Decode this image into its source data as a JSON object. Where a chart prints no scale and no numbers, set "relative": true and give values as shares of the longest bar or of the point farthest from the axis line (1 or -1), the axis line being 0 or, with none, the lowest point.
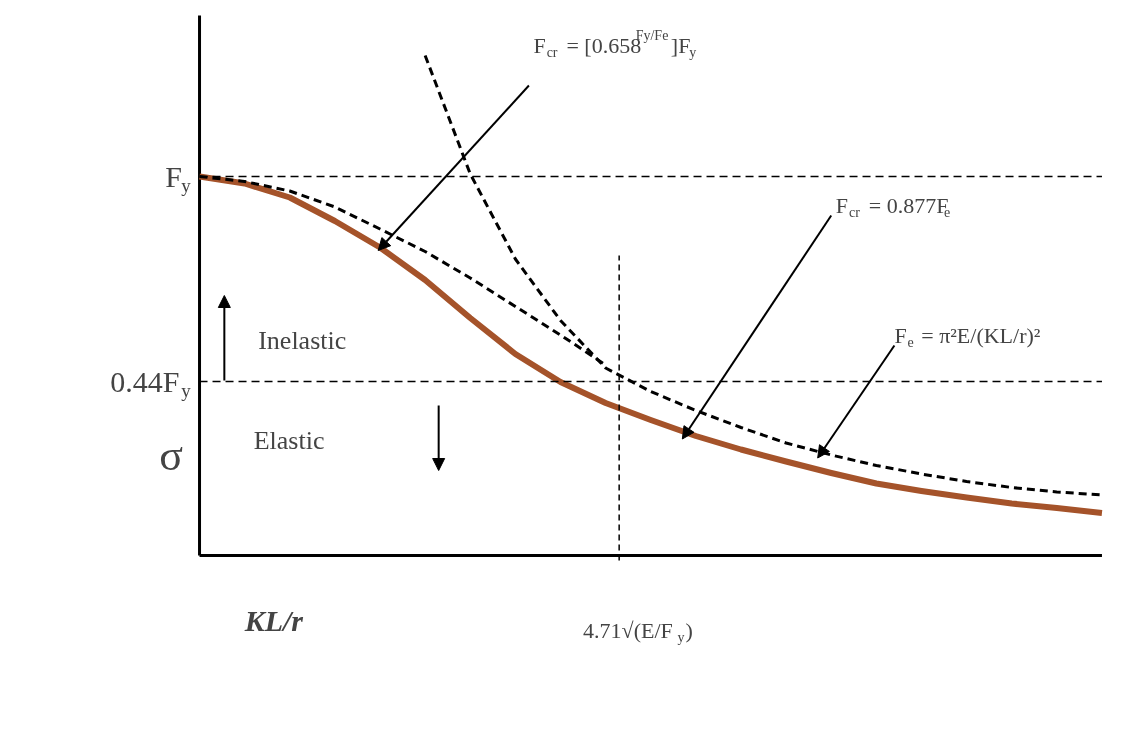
{
  "chart_data": {
    "type": "line",
    "relative": true,
    "xlabel": "KL/r",
    "ylabel": "σ",
    "categories": [
      null,
      null,
      null,
      null,
      null,
      null,
      null,
      null,
      null,
      null,
      null,
      null,
      null,
      null,
      null,
      null,
      null,
      null,
      null,
      null,
      null
    ],
    "series": [
      {
        "color": "#a5532a",
        "line_style": "solid",
        "values": [
          0.758,
          0.744,
          0.716,
          0.669,
          0.616,
          0.551,
          0.475,
          0.403,
          0.347,
          0.305,
          0.271,
          0.239,
          0.212,
          0.188,
          0.165,
          0.144,
          0.129,
          0.116,
          0.104,
          0.095,
          0.085
        ]
      },
      {
        "color": "#000000",
        "line_style": "dashed",
        "values": [
          0.758,
          0.748,
          0.729,
          0.697,
          0.653,
          0.608,
          0.555,
          0.498,
          0.441,
          0.381,
          null,
          null,
          null,
          null,
          null,
          null,
          null,
          null,
          null,
          null,
          null
        ]
      },
      {
        "color": "#000000",
        "line_style": "dashed",
        "values": [
          null,
          null,
          null,
          null,
          null,
          1.0,
          0.763,
          0.593,
          0.47,
          0.375,
          0.328,
          0.29,
          0.256,
          0.225,
          0.201,
          0.18,
          0.163,
          0.148,
          0.136,
          0.127,
          0.121
        ]
      }
    ],
    "ref_lines": [
      {
        "axis": "y",
        "value": 0.758,
        "label": "F$_{y}$",
        "color": "#000000",
        "line_style": "dashed"
      },
      {
        "axis": "y",
        "value": 0.348,
        "label": "0.44F$_{y}$",
        "color": "#000000",
        "line_style": "dashed"
      }
    ],
    "annotations": [
      "F$_{cr}$ = [0.658$^{Fy/Fe}$]F$_{y}$",
      "F$_{cr}$ = 0.877F$_{e}$",
      "F$_{e}$ = π²E/(KL/r)²",
      "Inelastic",
      "Elastic",
      "4.71√(E/F$_{y}$)"
    ],
    "grid": false,
    "marker": "none",
    "tick_labels": false
  }
}
